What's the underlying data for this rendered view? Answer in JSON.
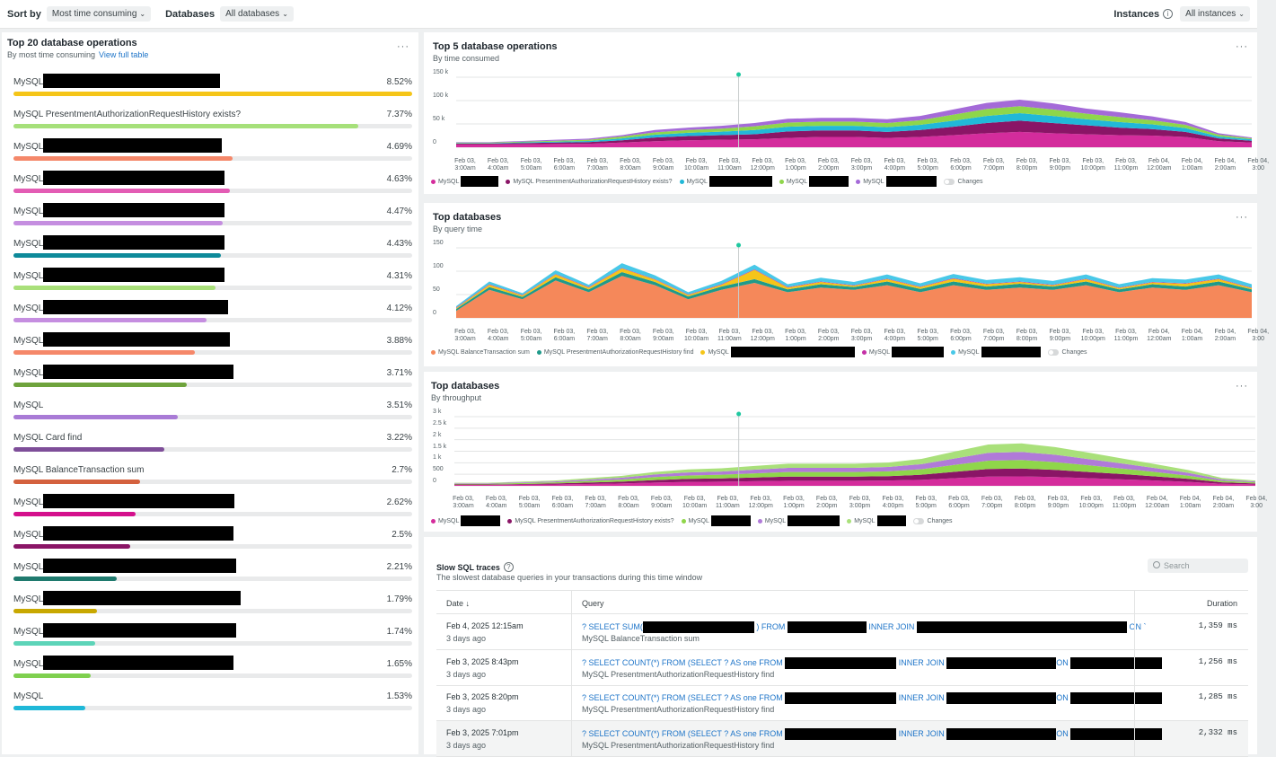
{
  "toolbar": {
    "sort_label": "Sort by",
    "sort_value": "Most time consuming",
    "db_label": "Databases",
    "db_value": "All databases",
    "instances_label": "Instances",
    "instances_value": "All instances"
  },
  "top20": {
    "title": "Top 20 database operations",
    "subtitle": "By most time consuming",
    "link": "View full table",
    "rows": [
      {
        "name": "MySQL",
        "pct": "8.52%",
        "fraction": 1.0,
        "color": "#f5c518"
      },
      {
        "name": "MySQL PresentmentAuthorizationRequestHistory exists?",
        "pct": "7.37%",
        "fraction": 0.865,
        "color": "#a6e07a"
      },
      {
        "name": "MySQL",
        "pct": "4.69%",
        "fraction": 0.55,
        "color": "#f5886a"
      },
      {
        "name": "MySQL",
        "pct": "4.63%",
        "fraction": 0.543,
        "color": "#e35cb4"
      },
      {
        "name": "MySQL",
        "pct": "4.47%",
        "fraction": 0.525,
        "color": "#c58ee0"
      },
      {
        "name": "MySQL",
        "pct": "4.43%",
        "fraction": 0.52,
        "color": "#0d8a9a"
      },
      {
        "name": "MySQL",
        "pct": "4.31%",
        "fraction": 0.506,
        "color": "#a9e07a"
      },
      {
        "name": "MySQL",
        "pct": "4.12%",
        "fraction": 0.484,
        "color": "#c58ee0"
      },
      {
        "name": "MySQL",
        "pct": "3.88%",
        "fraction": 0.455,
        "color": "#f5886a"
      },
      {
        "name": "MySQL",
        "pct": "3.71%",
        "fraction": 0.435,
        "color": "#6ea33c"
      },
      {
        "name": "MySQL",
        "pct": "3.51%",
        "fraction": 0.412,
        "color": "#a97bd6"
      },
      {
        "name": "MySQL Card find",
        "pct": "3.22%",
        "fraction": 0.378,
        "color": "#7e4e99"
      },
      {
        "name": "MySQL BalanceTransaction sum",
        "pct": "2.7%",
        "fraction": 0.317,
        "color": "#d4613e"
      },
      {
        "name": "MySQL",
        "pct": "2.62%",
        "fraction": 0.307,
        "color": "#d4108c"
      },
      {
        "name": "MySQL",
        "pct": "2.5%",
        "fraction": 0.293,
        "color": "#8a1566"
      },
      {
        "name": "MySQL",
        "pct": "2.21%",
        "fraction": 0.259,
        "color": "#1f7a6e"
      },
      {
        "name": "MySQL",
        "pct": "1.79%",
        "fraction": 0.21,
        "color": "#c8a800"
      },
      {
        "name": "MySQL",
        "pct": "1.74%",
        "fraction": 0.204,
        "color": "#5dd4b8"
      },
      {
        "name": "MySQL",
        "pct": "1.65%",
        "fraction": 0.194,
        "color": "#7fd04f"
      },
      {
        "name": "MySQL",
        "pct": "1.53%",
        "fraction": 0.18,
        "color": "#1fb8d8"
      }
    ]
  },
  "xticks": [
    "Feb 03,|3:00am",
    "Feb 03,|4:00am",
    "Feb 03,|5:00am",
    "Feb 03,|6:00am",
    "Feb 03,|7:00am",
    "Feb 03,|8:00am",
    "Feb 03,|9:00am",
    "Feb 03,|10:00am",
    "Feb 03,|11:00am",
    "Feb 03,|12:00pm",
    "Feb 03,|1:00pm",
    "Feb 03,|2:00pm",
    "Feb 03,|3:00pm",
    "Feb 03,|4:00pm",
    "Feb 03,|5:00pm",
    "Feb 03,|6:00pm",
    "Feb 03,|7:00pm",
    "Feb 03,|8:00pm",
    "Feb 03,|9:00pm",
    "Feb 03,|10:00pm",
    "Feb 03,|11:00pm",
    "Feb 04,|12:00am",
    "Feb 04,|1:00am",
    "Feb 04,|2:00am",
    "Feb 04,|3:00"
  ],
  "chart_data": [
    {
      "type": "area",
      "title": "Top 5 database operations",
      "subtitle": "By time consumed",
      "ylim": [
        0,
        150000
      ],
      "yticks": [
        "150 k",
        "100 k",
        "50 k",
        "0"
      ],
      "series": [
        {
          "name": "MySQL",
          "color": "#d42c9c",
          "values": [
            6000,
            6000,
            6500,
            7000,
            7500,
            10000,
            13000,
            15000,
            16000,
            17000,
            20000,
            22000,
            22000,
            20000,
            22000,
            26000,
            30000,
            33000,
            30000,
            28000,
            26000,
            25000,
            22000,
            13000,
            10000
          ]
        },
        {
          "name": "MySQL PresentmentAuthorizationRequestHistory exists?",
          "color": "#8a1566",
          "values": [
            2000,
            2000,
            2500,
            3000,
            3500,
            5000,
            8000,
            9000,
            10000,
            11000,
            14000,
            14000,
            14000,
            13000,
            15000,
            18000,
            22000,
            24000,
            22000,
            19000,
            16000,
            14000,
            11000,
            6000,
            4000
          ]
        },
        {
          "name": "MySQL",
          "color": "#21b8d8",
          "values": [
            1000,
            1000,
            1500,
            2000,
            2500,
            4000,
            6000,
            7000,
            7500,
            9000,
            10000,
            10000,
            10000,
            10000,
            11000,
            13000,
            15000,
            16000,
            15000,
            13000,
            12000,
            10000,
            8000,
            4000,
            3000
          ]
        },
        {
          "name": "MySQL",
          "color": "#8fd64a",
          "values": [
            1000,
            1000,
            1500,
            2000,
            2500,
            4000,
            5000,
            6000,
            6500,
            8000,
            9000,
            9000,
            9000,
            9000,
            10000,
            13000,
            15000,
            15000,
            14000,
            12000,
            11000,
            9000,
            7000,
            4000,
            2000
          ]
        },
        {
          "name": "MySQL",
          "color": "#a46ad8",
          "values": [
            1000,
            1000,
            1500,
            2000,
            2500,
            3000,
            5000,
            5000,
            6000,
            7000,
            8000,
            8000,
            8000,
            8000,
            9000,
            11000,
            13000,
            14000,
            13000,
            11000,
            10000,
            8000,
            6000,
            3000,
            2000
          ]
        }
      ]
    },
    {
      "type": "area",
      "title": "Top databases",
      "subtitle": "By query time",
      "ylim": [
        0,
        150
      ],
      "yticks": [
        "150",
        "100",
        "50",
        "0"
      ],
      "series": [
        {
          "name": "MySQL BalanceTransaction sum",
          "color": "#f5885a",
          "values": [
            15,
            60,
            40,
            80,
            55,
            90,
            70,
            40,
            60,
            75,
            55,
            65,
            60,
            70,
            55,
            70,
            60,
            65,
            60,
            70,
            55,
            65,
            60,
            70,
            55
          ]
        },
        {
          "name": "MySQL PresentmentAuthorizationRequestHistory find",
          "color": "#1f9a8a",
          "values": [
            4,
            6,
            5,
            7,
            6,
            8,
            7,
            6,
            7,
            8,
            6,
            7,
            6,
            8,
            7,
            8,
            7,
            8,
            7,
            8,
            6,
            7,
            7,
            8,
            6
          ]
        },
        {
          "name": "MySQL",
          "color": "#f5c518",
          "values": [
            2,
            5,
            3,
            6,
            4,
            8,
            5,
            3,
            4,
            20,
            4,
            5,
            3,
            5,
            4,
            6,
            5,
            4,
            3,
            5,
            3,
            4,
            6,
            5,
            3
          ]
        },
        {
          "name": "MySQL",
          "color": "#c42fa6",
          "values": [
            1,
            1,
            1,
            1,
            1,
            1,
            1,
            1,
            1,
            1,
            1,
            1,
            1,
            1,
            1,
            1,
            1,
            1,
            1,
            1,
            1,
            1,
            1,
            1,
            1
          ]
        },
        {
          "name": "MySQL",
          "color": "#48c8e8",
          "values": [
            3,
            6,
            4,
            8,
            5,
            10,
            8,
            5,
            7,
            10,
            6,
            8,
            7,
            9,
            7,
            9,
            8,
            9,
            8,
            9,
            7,
            8,
            8,
            9,
            7
          ]
        }
      ]
    },
    {
      "type": "area",
      "title": "Top databases",
      "subtitle": "By throughput",
      "ylim": [
        0,
        3000
      ],
      "yticks": [
        "3 k",
        "2.5 k",
        "2 k",
        "1.5 k",
        "1 k",
        "500",
        "0"
      ],
      "series": [
        {
          "name": "MySQL",
          "color": "#d42c9c",
          "values": [
            40,
            40,
            50,
            60,
            80,
            100,
            140,
            170,
            180,
            200,
            220,
            220,
            220,
            230,
            260,
            330,
            400,
            410,
            380,
            330,
            280,
            230,
            170,
            90,
            60
          ]
        },
        {
          "name": "MySQL PresentmentAuthorizationRequestHistory exists?",
          "color": "#8a1566",
          "values": [
            20,
            20,
            30,
            40,
            60,
            80,
            110,
            130,
            140,
            160,
            180,
            180,
            180,
            190,
            220,
            280,
            330,
            340,
            310,
            270,
            230,
            180,
            130,
            60,
            40
          ]
        },
        {
          "name": "MySQL",
          "color": "#8fd64a",
          "values": [
            30,
            30,
            40,
            50,
            70,
            90,
            130,
            150,
            160,
            180,
            200,
            200,
            200,
            210,
            240,
            300,
            360,
            370,
            340,
            290,
            240,
            190,
            140,
            70,
            50
          ]
        },
        {
          "name": "MySQL",
          "color": "#b07ad8",
          "values": [
            20,
            20,
            30,
            40,
            60,
            80,
            110,
            130,
            140,
            160,
            180,
            180,
            180,
            190,
            220,
            280,
            340,
            350,
            320,
            270,
            220,
            170,
            120,
            60,
            40
          ]
        },
        {
          "name": "MySQL",
          "color": "#a9e07a",
          "values": [
            20,
            20,
            30,
            40,
            60,
            80,
            110,
            130,
            140,
            160,
            180,
            180,
            180,
            190,
            230,
            300,
            360,
            370,
            330,
            280,
            220,
            170,
            120,
            60,
            40
          ]
        }
      ]
    }
  ],
  "changes_label": "Changes",
  "slow": {
    "title": "Slow SQL traces",
    "subtitle": "The slowest database queries in your transactions during this time window",
    "search_placeholder": "Search",
    "col_date": "Date ↓",
    "col_query": "Query",
    "col_duration": "Duration",
    "rows": [
      {
        "date": "Feb 4, 2025 12:15am",
        "ago": "3 days ago",
        "q1": "? SELECT SUM(",
        "q2": ") FROM",
        "q3": "INNER JOIN",
        "q4": "ON `",
        "qsub": "MySQL BalanceTransaction sum",
        "duration": "1,359 ms"
      },
      {
        "date": "Feb 3, 2025 8:43pm",
        "ago": "3 days ago",
        "q1": "? SELECT COUNT(*) FROM (SELECT ? AS one FROM",
        "q3": "INNER JOIN",
        "q4": "ON",
        "qsub": "MySQL PresentmentAuthorizationRequestHistory find",
        "duration": "1,256 ms"
      },
      {
        "date": "Feb 3, 2025 8:20pm",
        "ago": "3 days ago",
        "q1": "? SELECT COUNT(*) FROM (SELECT ? AS one FROM",
        "q3": "INNER JOIN",
        "q4": "ON",
        "qsub": "MySQL PresentmentAuthorizationRequestHistory find",
        "duration": "1,285 ms"
      },
      {
        "date": "Feb 3, 2025 7:01pm",
        "ago": "3 days ago",
        "q1": "? SELECT COUNT(*) FROM (SELECT ? AS one FROM",
        "q3": "INNER JOIN",
        "q4": "ON",
        "qsub": "MySQL PresentmentAuthorizationRequestHistory find",
        "duration": "2,332 ms"
      }
    ]
  }
}
